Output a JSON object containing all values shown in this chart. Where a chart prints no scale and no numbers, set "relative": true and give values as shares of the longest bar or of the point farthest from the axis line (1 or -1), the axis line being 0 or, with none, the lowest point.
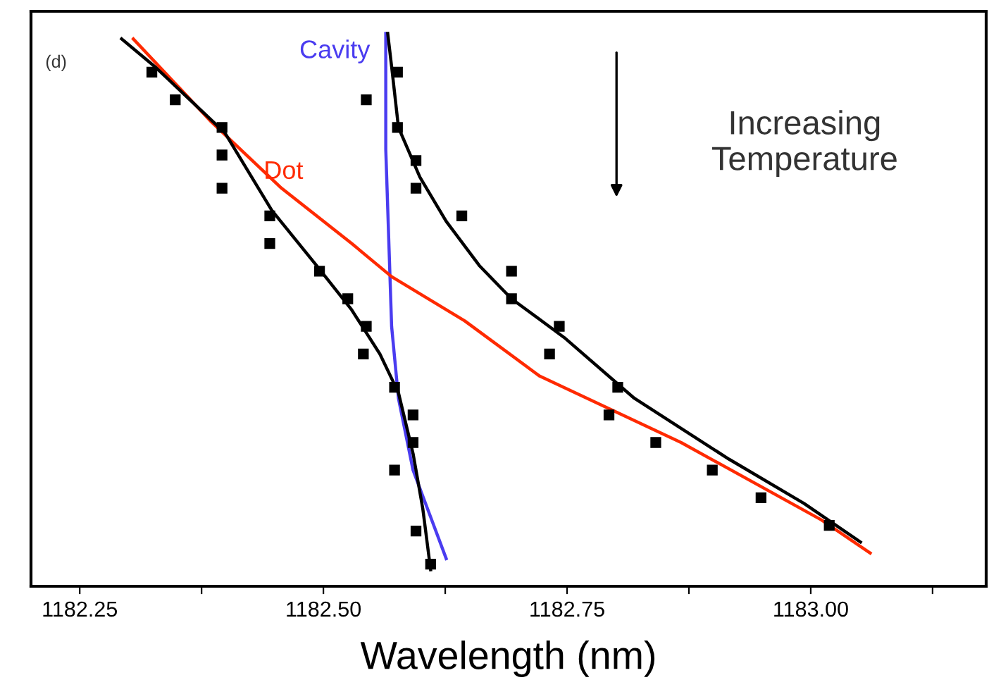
{
  "chart_data": {
    "type": "line",
    "xlabel": "Wavelength (nm)",
    "relative": true,
    "xlim": [
      1182.2,
      1183.18
    ],
    "xticks": [
      1182.25,
      {
        "value": 1182.375,
        "label": null
      },
      {
        "value": 1182.5,
        "label": "1182.50"
      },
      {
        "value": 1182.625,
        "label": null
      },
      1182.75,
      {
        "value": 1182.875,
        "label": null
      },
      {
        "value": 1183.0,
        "label": "1183.00"
      },
      {
        "value": 1183.125,
        "label": null
      }
    ],
    "tick_labels": "x",
    "grid": false,
    "annotations": [
      "(d)",
      "Increasing Temperature"
    ],
    "series": [
      {
        "name": "Cavity",
        "color": "#4a3cf0",
        "x": [
          1182.564,
          1182.564,
          1182.567,
          1182.57,
          1182.577,
          1182.592,
          1182.609,
          1182.626
        ],
        "values": [
          1.0,
          0.79,
          0.63,
          0.47,
          0.34,
          0.21,
          0.13,
          0.05
        ]
      },
      {
        "name": "Dot",
        "color": "#ff2a00",
        "x": [
          1182.305,
          1182.385,
          1182.457,
          1182.529,
          1182.57,
          1182.645,
          1182.722,
          1182.867,
          1183.011,
          1183.061
        ],
        "values": [
          0.99,
          0.84,
          0.72,
          0.62,
          0.56,
          0.48,
          0.38,
          0.26,
          0.12,
          0.06
        ]
      },
      {
        "color": "#000000",
        "x": [
          1182.293,
          1182.327,
          1182.399,
          1182.447,
          1182.493,
          1182.529,
          1182.558,
          1182.577,
          1182.592,
          1182.602,
          1182.61
        ],
        "values": [
          0.99,
          0.94,
          0.82,
          0.68,
          0.58,
          0.5,
          0.42,
          0.35,
          0.24,
          0.14,
          0.03
        ]
      },
      {
        "color": "#000000",
        "x": [
          1182.566,
          1182.57,
          1182.577,
          1182.599,
          1182.626,
          1182.66,
          1182.693,
          1182.747,
          1182.819,
          1182.916,
          1182.993,
          1183.051
        ],
        "values": [
          1.0,
          0.94,
          0.83,
          0.74,
          0.66,
          0.58,
          0.52,
          0.45,
          0.34,
          0.23,
          0.15,
          0.08
        ]
      },
      {
        "color": "#000000",
        "type": "scatter",
        "marker": "square",
        "x": [
          1182.324,
          1182.348,
          1182.396,
          1182.396,
          1182.396,
          1182.445,
          1182.445,
          1182.496,
          1182.525,
          1182.544,
          1182.541,
          1182.573,
          1182.592,
          1182.592,
          1182.573,
          1182.595,
          1182.61,
          1182.544,
          1182.576,
          1182.576,
          1182.595,
          1182.595,
          1182.642,
          1182.693,
          1182.693,
          1182.742,
          1182.732,
          1182.802,
          1182.793,
          1182.841,
          1182.899,
          1182.949,
          1183.019
        ],
        "values": [
          0.93,
          0.88,
          0.83,
          0.78,
          0.72,
          0.67,
          0.62,
          0.57,
          0.52,
          0.47,
          0.42,
          0.36,
          0.31,
          0.26,
          0.21,
          0.1,
          0.04,
          0.88,
          0.93,
          0.83,
          0.77,
          0.72,
          0.67,
          0.57,
          0.52,
          0.47,
          0.42,
          0.36,
          0.31,
          0.26,
          0.21,
          0.16,
          0.11
        ]
      }
    ]
  }
}
